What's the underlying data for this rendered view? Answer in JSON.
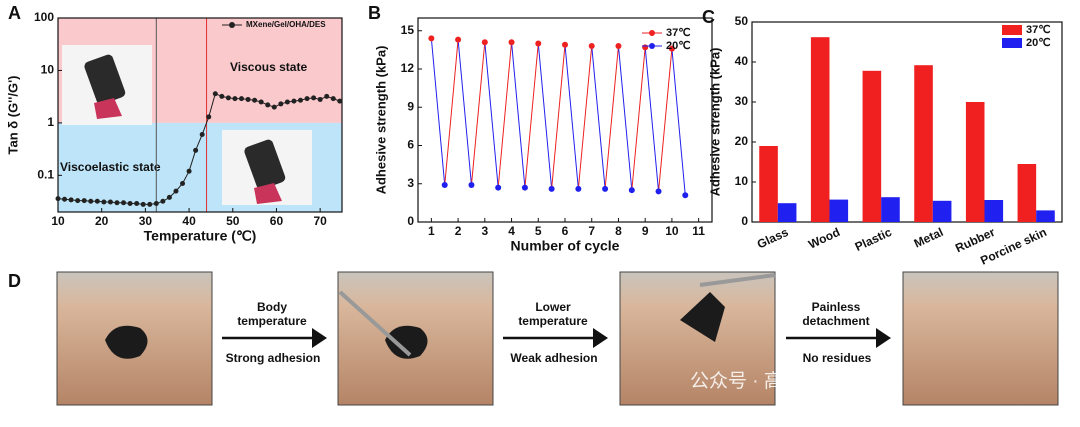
{
  "chart_data": [
    {
      "type": "line",
      "panel_label": "A",
      "xlabel": "Temperature (℃)",
      "ylabel": "Tan δ (G''/G')",
      "log_y": true,
      "xlim": [
        10,
        75
      ],
      "xticks": [
        10,
        20,
        30,
        40,
        50,
        60,
        70
      ],
      "ylim": [
        0.02,
        100
      ],
      "yticks": [
        0.1,
        1,
        10,
        100
      ],
      "regions": [
        {
          "label": "Viscous state",
          "from": 1,
          "to": 100,
          "color": "#f9c9cc",
          "label_color": "#e02020"
        },
        {
          "label": "Viscoelastic state",
          "from": 0.02,
          "to": 1,
          "color": "#bde4f8",
          "label_color": "#2020d0"
        }
      ],
      "vlines": [
        {
          "x": 32.5,
          "color": "#555555"
        },
        {
          "x": 44,
          "color": "#e03030"
        }
      ],
      "x": [
        10,
        11.5,
        13,
        14.5,
        16,
        17.5,
        19,
        20.5,
        22,
        23.5,
        25,
        26.5,
        28,
        29.5,
        31,
        32.5,
        34,
        35.5,
        37,
        38.5,
        40,
        41.5,
        43,
        44.5,
        46,
        47.5,
        49,
        50.5,
        52,
        53.5,
        55,
        56.5,
        58,
        59.5,
        61,
        62.5,
        64,
        65.5,
        67,
        68.5,
        70,
        71.5,
        73,
        74.5
      ],
      "series": [
        {
          "name": "MXene/Gel/OHA/DES",
          "color": "#222222",
          "values": [
            0.036,
            0.035,
            0.034,
            0.033,
            0.033,
            0.032,
            0.032,
            0.031,
            0.031,
            0.03,
            0.03,
            0.029,
            0.029,
            0.028,
            0.028,
            0.029,
            0.032,
            0.038,
            0.05,
            0.07,
            0.12,
            0.3,
            0.6,
            1.3,
            3.6,
            3.2,
            3.0,
            2.9,
            2.9,
            2.8,
            2.7,
            2.5,
            2.2,
            2.0,
            2.3,
            2.5,
            2.6,
            2.7,
            2.9,
            3.0,
            2.8,
            3.2,
            2.9,
            2.6
          ]
        }
      ]
    },
    {
      "type": "zigzag",
      "panel_label": "B",
      "xlabel": "Number of cycle",
      "ylabel": "Adhesive strength (kPa)",
      "xlim": [
        0.5,
        11.5
      ],
      "xticks": [
        1,
        2,
        3,
        4,
        5,
        6,
        7,
        8,
        9,
        10,
        11
      ],
      "ylim": [
        0,
        16
      ],
      "yticks": [
        0,
        3,
        6,
        9,
        12,
        15
      ],
      "series": [
        {
          "name": "37℃",
          "color": "#ee2020",
          "x": [
            1,
            2,
            3,
            4,
            5,
            6,
            7,
            8,
            9,
            10
          ],
          "values": [
            14.4,
            14.3,
            14.1,
            14.1,
            14.0,
            13.9,
            13.8,
            13.8,
            13.7,
            13.6
          ]
        },
        {
          "name": "20℃",
          "color": "#2020ee",
          "x": [
            1.5,
            2.5,
            3.5,
            4.5,
            5.5,
            6.5,
            7.5,
            8.5,
            9.5,
            10.5
          ],
          "values": [
            2.9,
            2.9,
            2.7,
            2.7,
            2.6,
            2.6,
            2.6,
            2.5,
            2.4,
            2.1
          ]
        }
      ]
    },
    {
      "type": "bar",
      "panel_label": "C",
      "ylabel": "Adhesive strength (kPa)",
      "categories": [
        "Glass",
        "Wood",
        "Plastic",
        "Metal",
        "Rubber",
        "Porcine skin"
      ],
      "ylim": [
        0,
        50
      ],
      "yticks": [
        0,
        10,
        20,
        30,
        40,
        50
      ],
      "series": [
        {
          "name": "37℃",
          "color": "#f02020",
          "values": [
            19,
            46.2,
            37.8,
            39.2,
            30,
            14.5
          ]
        },
        {
          "name": "20℃",
          "color": "#2020f0",
          "values": [
            4.7,
            5.6,
            6.2,
            5.3,
            5.5,
            2.9
          ]
        }
      ]
    }
  ],
  "panel_d": {
    "label": "D",
    "steps": [
      {
        "top": "Body temperature",
        "bottom": "Strong adhesion"
      },
      {
        "top": "Lower temperature",
        "bottom": "Weak adhesion"
      },
      {
        "top": "Painless detachment",
        "bottom": "No residues"
      }
    ]
  },
  "watermark": "公众号 · 高分子科学前沿"
}
